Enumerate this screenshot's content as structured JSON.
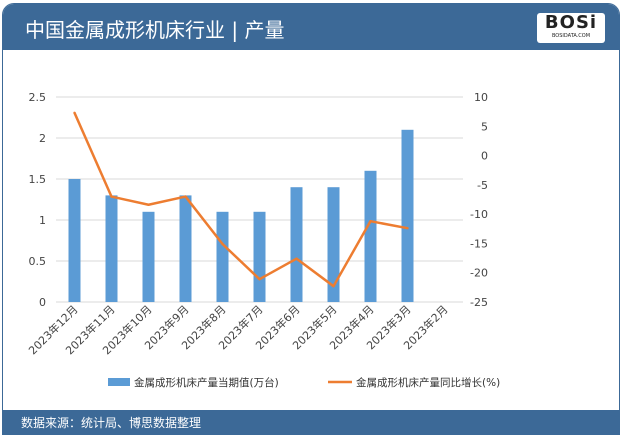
{
  "header": {
    "title": "中国金属成形机床行业 | 产量",
    "logo_text": "BOSi",
    "logo_sub": "BOSIDATA.COM"
  },
  "footer": {
    "source": "数据来源：统计局、博思数据整理"
  },
  "colors": {
    "bar": "#5b9bd5",
    "line": "#ed7d31",
    "header": "#3c6997"
  },
  "chart_data": {
    "type": "bar+line",
    "categories": [
      "2023年12月",
      "2023年11月",
      "2023年10月",
      "2023年9月",
      "2023年8月",
      "2023年7月",
      "2023年6月",
      "2023年5月",
      "2023年4月",
      "2023年3月",
      "2023年2月"
    ],
    "series": [
      {
        "name": "金属成形机床产量当期值(万台)",
        "type": "bar",
        "axis": "left",
        "values": [
          1.5,
          1.3,
          1.1,
          1.3,
          1.1,
          1.1,
          1.4,
          1.4,
          1.6,
          2.1,
          null
        ]
      },
      {
        "name": "金属成形机床产量同比增长(%)",
        "type": "line",
        "axis": "right",
        "values": [
          7.3,
          -7.0,
          -8.4,
          -7.0,
          -15.1,
          -21.1,
          -17.6,
          -22.3,
          -11.2,
          -12.4,
          null
        ]
      }
    ],
    "ylim_left": [
      0,
      2.5
    ],
    "yticks_left": [
      "0",
      "0.5",
      "1",
      "1.5",
      "2",
      "2.5"
    ],
    "ylim_right": [
      -25,
      10
    ],
    "yticks_right": [
      "-25",
      "-20",
      "-15",
      "-10",
      "-5",
      "0",
      "5",
      "10"
    ],
    "grid": true,
    "legend": "bottom"
  }
}
